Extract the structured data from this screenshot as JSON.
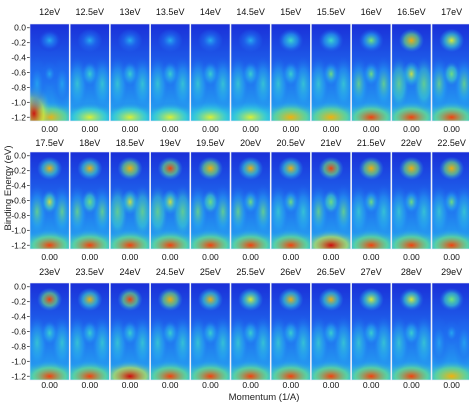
{
  "chart_data": {
    "type": "heatmap",
    "description_text": {
      "xlabel": "Momentum (1/A)",
      "ylabel": "Binding Energy (eV)"
    },
    "colormap": [
      "#1a2fd8",
      "#1f6ef0",
      "#27b0f0",
      "#3fe0c8",
      "#7bef6e",
      "#e6f22a",
      "#ffb000",
      "#ff3a00",
      "#d80000"
    ],
    "ylim": [
      -1.25,
      0.05
    ],
    "y_ticks": [
      0.0,
      -0.2,
      -0.4,
      -0.6,
      -0.8,
      -1.0,
      -1.2
    ],
    "y_tick_labels": [
      "0.0",
      "-0.2",
      "-0.4",
      "-0.6",
      "-0.8",
      "-1.0",
      "-1.2"
    ],
    "x_tick_label": "0.00",
    "rows": [
      {
        "panels": [
          {
            "label": "12eV",
            "top": 0.0,
            "mid": 0.05,
            "bottom": 0.55
          },
          {
            "label": "12.5eV",
            "top": 0.05,
            "mid": 0.2,
            "bottom": 0.3
          },
          {
            "label": "13eV",
            "top": 0.05,
            "mid": 0.25,
            "bottom": 0.3
          },
          {
            "label": "13.5eV",
            "top": 0.05,
            "mid": 0.2,
            "bottom": 0.3
          },
          {
            "label": "14eV",
            "top": 0.1,
            "mid": 0.2,
            "bottom": 0.35
          },
          {
            "label": "14.5eV",
            "top": 0.1,
            "mid": 0.2,
            "bottom": 0.4
          },
          {
            "label": "15eV",
            "top": 0.15,
            "mid": 0.25,
            "bottom": 0.55
          },
          {
            "label": "15.5eV",
            "top": 0.25,
            "mid": 0.3,
            "bottom": 0.6
          },
          {
            "label": "16eV",
            "top": 0.35,
            "mid": 0.4,
            "bottom": 0.75
          },
          {
            "label": "16.5eV",
            "top": 0.65,
            "mid": 0.55,
            "bottom": 0.85
          },
          {
            "label": "17eV",
            "top": 0.55,
            "mid": 0.45,
            "bottom": 0.8
          }
        ]
      },
      {
        "panels": [
          {
            "label": "17.5eV",
            "top": 0.6,
            "mid": 0.5,
            "bottom": 0.75
          },
          {
            "label": "18eV",
            "top": 0.6,
            "mid": 0.45,
            "bottom": 0.7
          },
          {
            "label": "18.5eV",
            "top": 0.7,
            "mid": 0.55,
            "bottom": 0.75
          },
          {
            "label": "19eV",
            "top": 0.8,
            "mid": 0.55,
            "bottom": 0.8
          },
          {
            "label": "19.5eV",
            "top": 0.65,
            "mid": 0.45,
            "bottom": 0.75
          },
          {
            "label": "20eV",
            "top": 0.6,
            "mid": 0.4,
            "bottom": 0.75
          },
          {
            "label": "20.5eV",
            "top": 0.6,
            "mid": 0.3,
            "bottom": 0.85
          },
          {
            "label": "21eV",
            "top": 0.8,
            "mid": 0.45,
            "bottom": 0.9
          },
          {
            "label": "21.5eV",
            "top": 0.7,
            "mid": 0.35,
            "bottom": 0.85
          },
          {
            "label": "22eV",
            "top": 0.65,
            "mid": 0.3,
            "bottom": 0.8
          },
          {
            "label": "22.5eV",
            "top": 0.65,
            "mid": 0.35,
            "bottom": 0.8
          }
        ]
      },
      {
        "panels": [
          {
            "label": "23eV",
            "top": 0.8,
            "mid": 0.2,
            "bottom": 0.75
          },
          {
            "label": "23.5eV",
            "top": 0.6,
            "mid": 0.15,
            "bottom": 0.7
          },
          {
            "label": "24eV",
            "top": 0.8,
            "mid": 0.2,
            "bottom": 0.9
          },
          {
            "label": "24.5eV",
            "top": 0.65,
            "mid": 0.15,
            "bottom": 0.75
          },
          {
            "label": "25eV",
            "top": 0.6,
            "mid": 0.15,
            "bottom": 0.75
          },
          {
            "label": "25.5eV",
            "top": 0.55,
            "mid": 0.15,
            "bottom": 0.7
          },
          {
            "label": "26eV",
            "top": 0.6,
            "mid": 0.15,
            "bottom": 0.8
          },
          {
            "label": "26.5eV",
            "top": 0.6,
            "mid": 0.15,
            "bottom": 0.8
          },
          {
            "label": "27eV",
            "top": 0.5,
            "mid": 0.15,
            "bottom": 0.7
          },
          {
            "label": "28eV",
            "top": 0.45,
            "mid": 0.15,
            "bottom": 0.7
          },
          {
            "label": "29eV",
            "top": 0.4,
            "mid": 0.1,
            "bottom": 0.65
          }
        ]
      }
    ],
    "grid": false,
    "legend": "none"
  }
}
